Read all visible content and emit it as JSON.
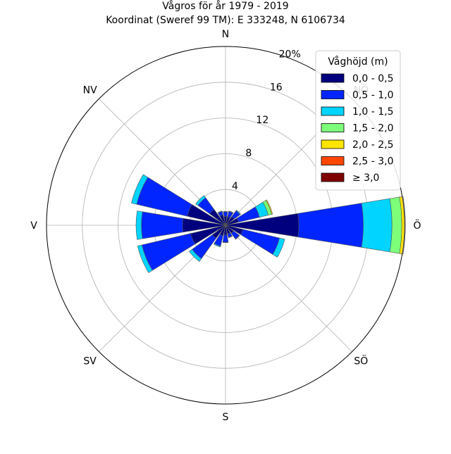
{
  "chart_data": {
    "type": "windrose",
    "title": "Vågros för år 1979 - 2019",
    "subtitle": "Koordinat (Sweref 99 TM): E 333248, N 6106734",
    "direction_labels": [
      "N",
      "NÖ",
      "Ö",
      "SÖ",
      "S",
      "SV",
      "V",
      "NV"
    ],
    "rmax": 20,
    "radial_ticks": [
      4,
      8,
      12,
      16,
      20
    ],
    "radial_tick_labels": [
      "4",
      "8",
      "12",
      "16",
      "20%"
    ],
    "grid": true,
    "legend": {
      "title": "Våghöjd (m)",
      "placement": "top-right",
      "entries": [
        {
          "label": "0,0 - 0,5",
          "color": "#00007f"
        },
        {
          "label": "0,5 - 1,0",
          "color": "#0025ff"
        },
        {
          "label": "1,0 - 1,5",
          "color": "#00d4ff"
        },
        {
          "label": "1,5 - 2,0",
          "color": "#7dff7a"
        },
        {
          "label": "2,0 - 2,5",
          "color": "#ffe500"
        },
        {
          "label": "2,5 - 3,0",
          "color": "#ff4700"
        },
        {
          "label": "≥ 3,0",
          "color": "#7f0000"
        }
      ]
    },
    "sector_count": 16,
    "sector_directions_deg": [
      0,
      22.5,
      45,
      67.5,
      90,
      112.5,
      135,
      157.5,
      180,
      202.5,
      225,
      247.5,
      270,
      292.5,
      315,
      337.5
    ],
    "series": [
      {
        "name": "0,0 - 0,5",
        "values": [
          1.0,
          1.0,
          1.2,
          1.5,
          8.2,
          2.0,
          1.1,
          1.0,
          1.1,
          1.2,
          1.8,
          4.0,
          4.8,
          4.4,
          2.2,
          1.2
        ]
      },
      {
        "name": "0,5 - 1,0",
        "values": [
          0.5,
          0.6,
          0.8,
          2.4,
          7.2,
          4.2,
          0.8,
          0.4,
          0.8,
          1.2,
          2.8,
          5.6,
          4.6,
          5.8,
          1.6,
          0.4
        ]
      },
      {
        "name": "1,0 - 1,5",
        "values": [
          0.05,
          0.05,
          0.1,
          1.0,
          3.2,
          0.6,
          0.05,
          0.05,
          0.05,
          0.1,
          0.4,
          0.5,
          0.6,
          0.6,
          0.3,
          0.05
        ]
      },
      {
        "name": "1,5 - 2,0",
        "values": [
          0,
          0,
          0,
          0.4,
          1.1,
          0,
          0,
          0,
          0,
          0,
          0,
          0,
          0,
          0,
          0,
          0
        ]
      },
      {
        "name": "2,0 - 2,5",
        "values": [
          0,
          0,
          0,
          0.1,
          0.3,
          0,
          0,
          0,
          0,
          0,
          0,
          0,
          0,
          0,
          0,
          0
        ]
      },
      {
        "name": "2,5 - 3,0",
        "values": [
          0,
          0,
          0,
          0,
          0.05,
          0,
          0,
          0,
          0,
          0,
          0,
          0,
          0,
          0,
          0,
          0
        ]
      },
      {
        "name": "≥ 3,0",
        "values": [
          0,
          0,
          0,
          0,
          0.05,
          0,
          0,
          0,
          0,
          0,
          0,
          0,
          0,
          0,
          0,
          0
        ]
      }
    ]
  }
}
